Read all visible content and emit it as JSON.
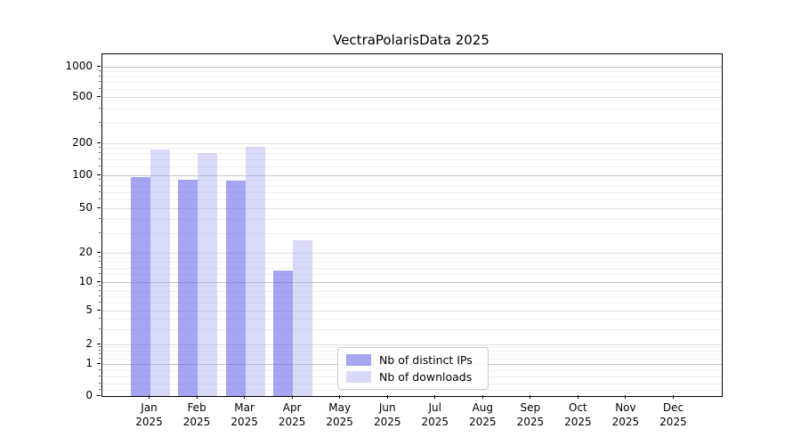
{
  "chart_data": {
    "type": "bar",
    "title": "VectraPolarisData 2025",
    "categories": [
      "Jan",
      "Feb",
      "Mar",
      "Apr",
      "May",
      "Jun",
      "Jul",
      "Aug",
      "Sep",
      "Oct",
      "Nov",
      "Dec"
    ],
    "x_year_label": "2025",
    "series": [
      {
        "name": "Nb of distinct IPs",
        "color": "rgba(105,105,232,0.6)",
        "values": [
          95,
          90,
          88,
          13,
          0,
          0,
          0,
          0,
          0,
          0,
          0,
          0
        ]
      },
      {
        "name": "Nb of downloads",
        "color": "rgba(170,170,240,0.45)",
        "values": [
          175,
          160,
          185,
          26,
          0,
          0,
          0,
          0,
          0,
          0,
          0,
          0
        ]
      }
    ],
    "y_ticks": [
      0,
      1,
      2,
      5,
      10,
      20,
      50,
      100,
      200,
      500,
      1000
    ],
    "y_scale": "symlog",
    "ylim": [
      0,
      1300
    ],
    "grid": true,
    "legend_position": "inside plot, lower center"
  }
}
